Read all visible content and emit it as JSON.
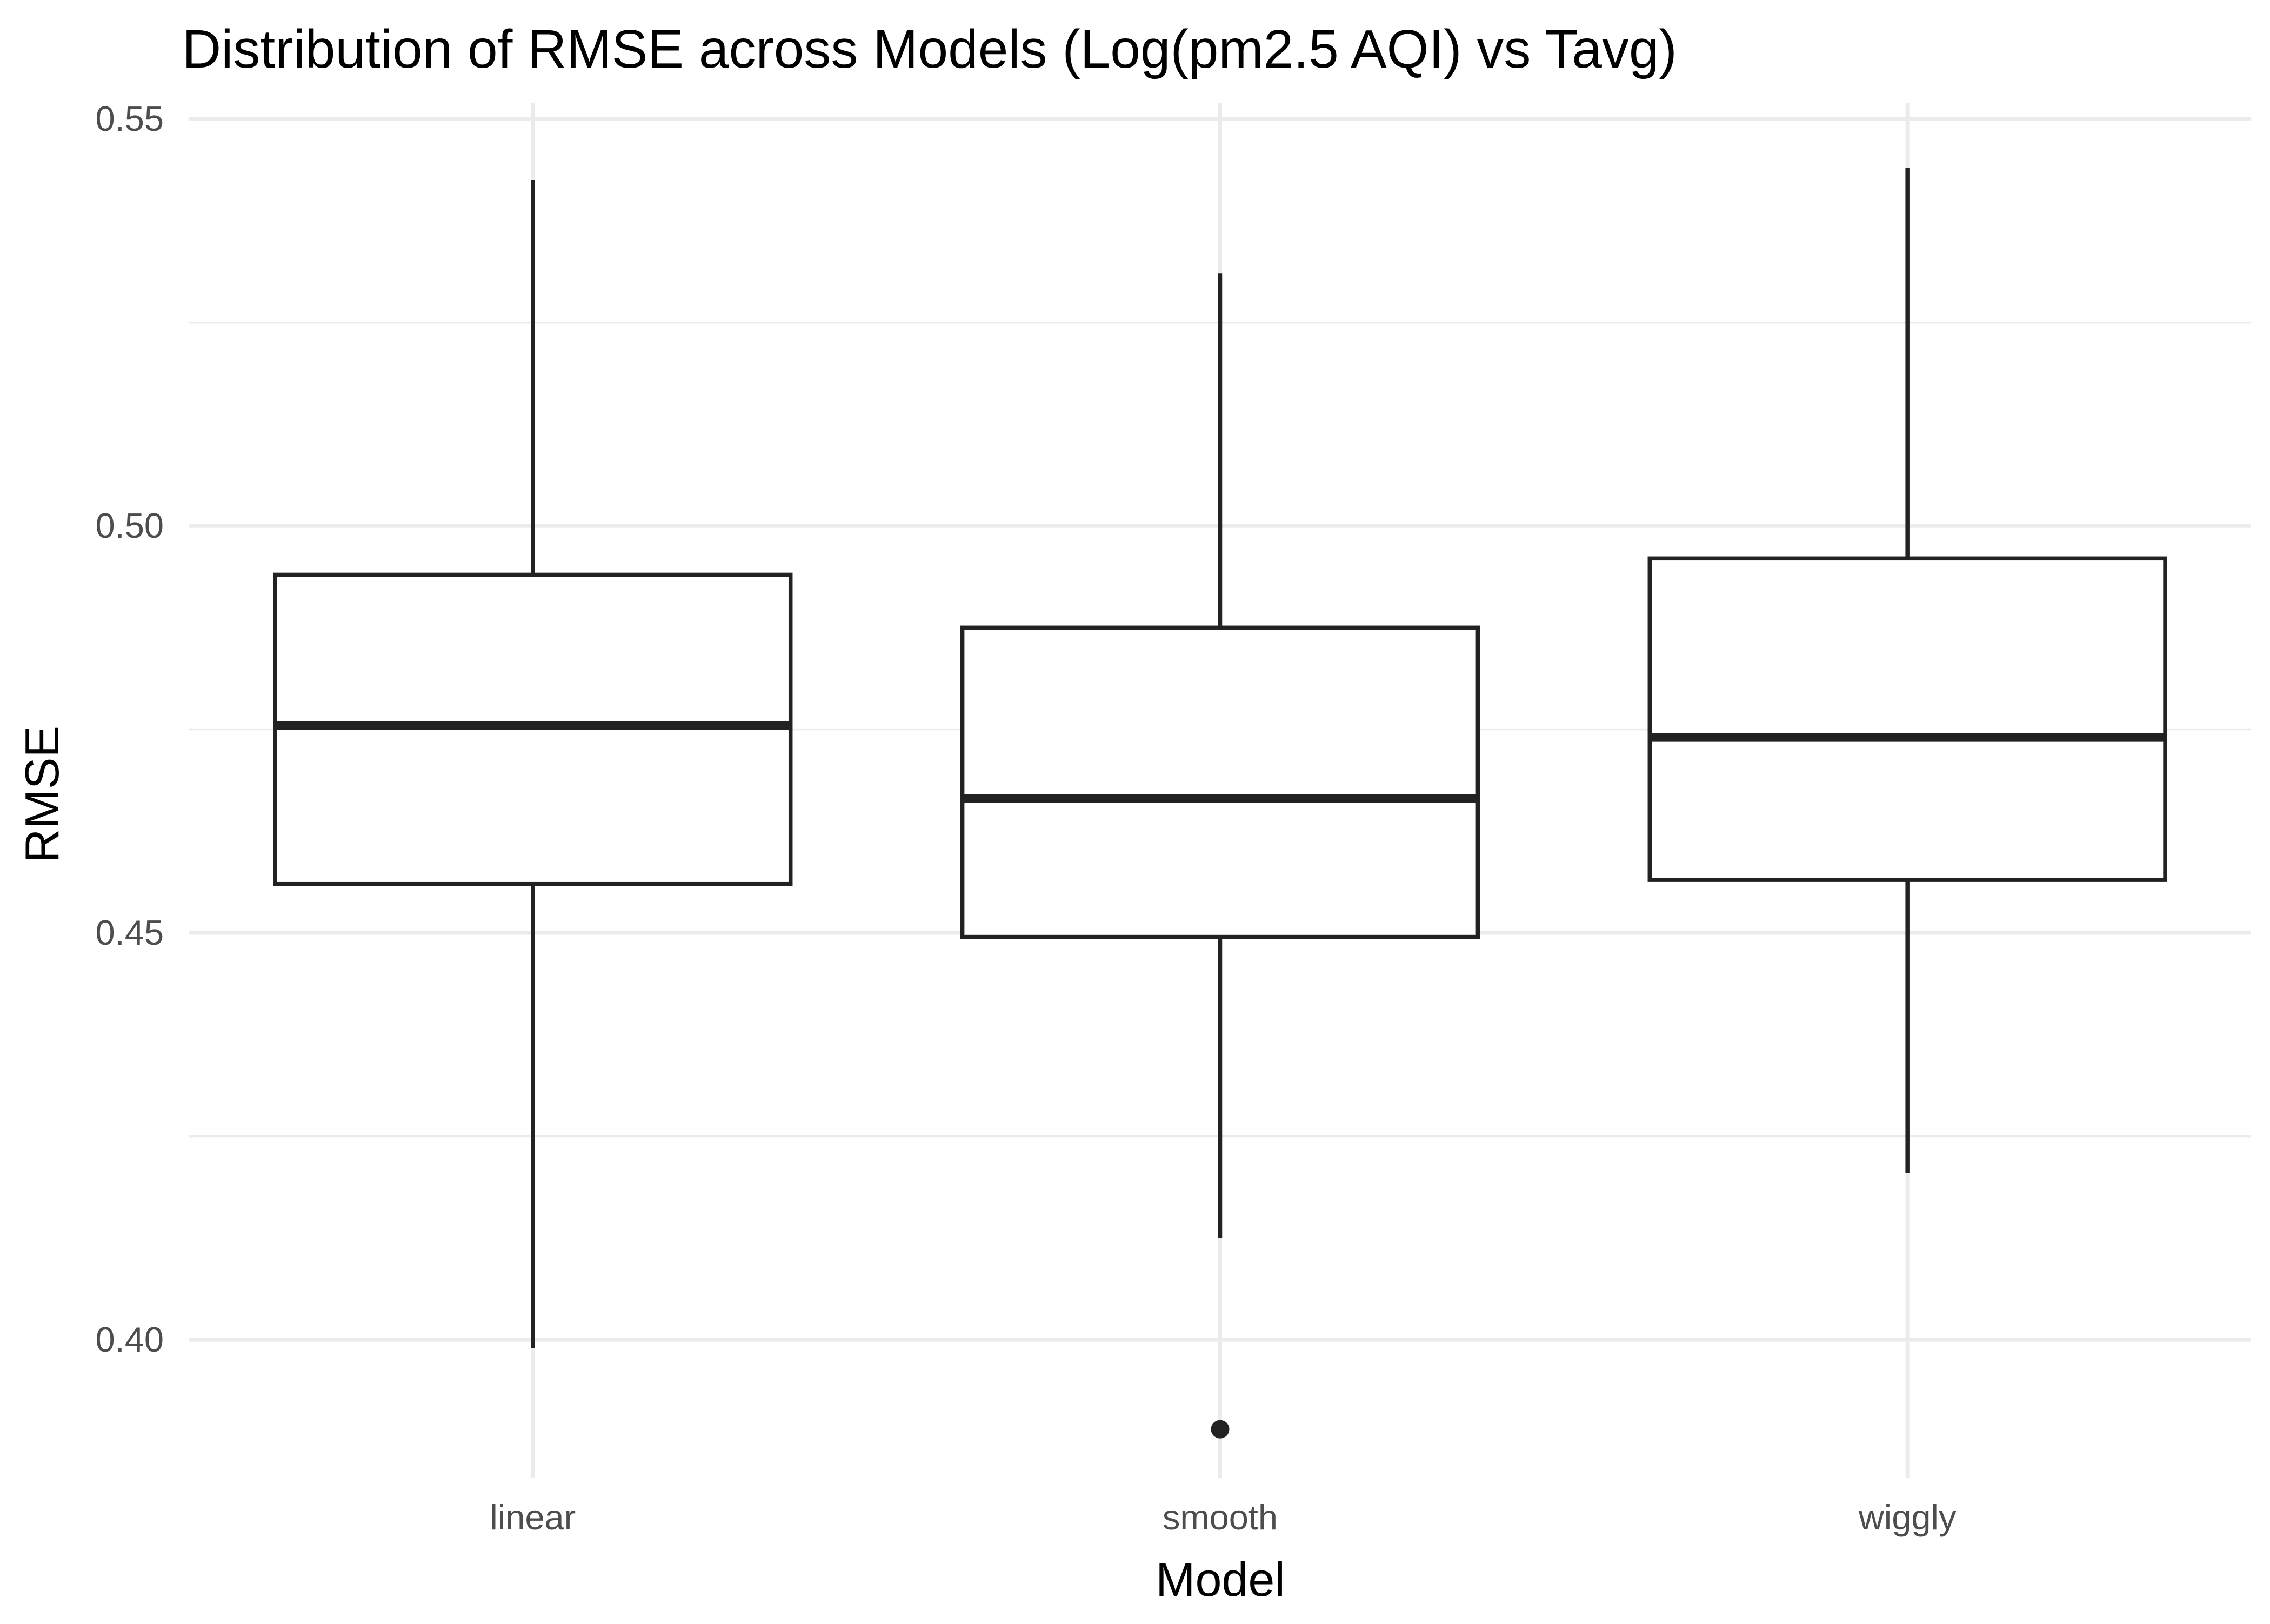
{
  "chart_data": {
    "type": "boxplot",
    "title": "Distribution of RMSE across Models (Log(pm2.5 AQI) vs Tavg)",
    "xlabel": "Model",
    "ylabel": "RMSE",
    "categories": [
      "linear",
      "smooth",
      "wiggly"
    ],
    "ylim": [
      0.383,
      0.552
    ],
    "y_ticks": [
      0.4,
      0.45,
      0.5,
      0.55
    ],
    "y_tick_labels": [
      "0.40",
      "0.45",
      "0.50",
      "0.55"
    ],
    "y_minor_ticks": [
      0.425,
      0.475,
      0.525
    ],
    "grid": true,
    "legend": "none",
    "boxes": [
      {
        "category": "linear",
        "whisker_low": 0.399,
        "q1": 0.456,
        "median": 0.4755,
        "q3": 0.494,
        "whisker_high": 0.5425,
        "outliers": []
      },
      {
        "category": "smooth",
        "whisker_low": 0.4125,
        "q1": 0.4495,
        "median": 0.4665,
        "q3": 0.4875,
        "whisker_high": 0.531,
        "outliers": [
          0.389
        ]
      },
      {
        "category": "wiggly",
        "whisker_low": 0.4205,
        "q1": 0.4565,
        "median": 0.474,
        "q3": 0.496,
        "whisker_high": 0.544,
        "outliers": []
      }
    ]
  },
  "colors": {
    "background": "#ffffff",
    "grid": "#ebebeb",
    "box_line": "#222222",
    "tick_text": "#4d4d4d",
    "title_text": "#000000"
  }
}
